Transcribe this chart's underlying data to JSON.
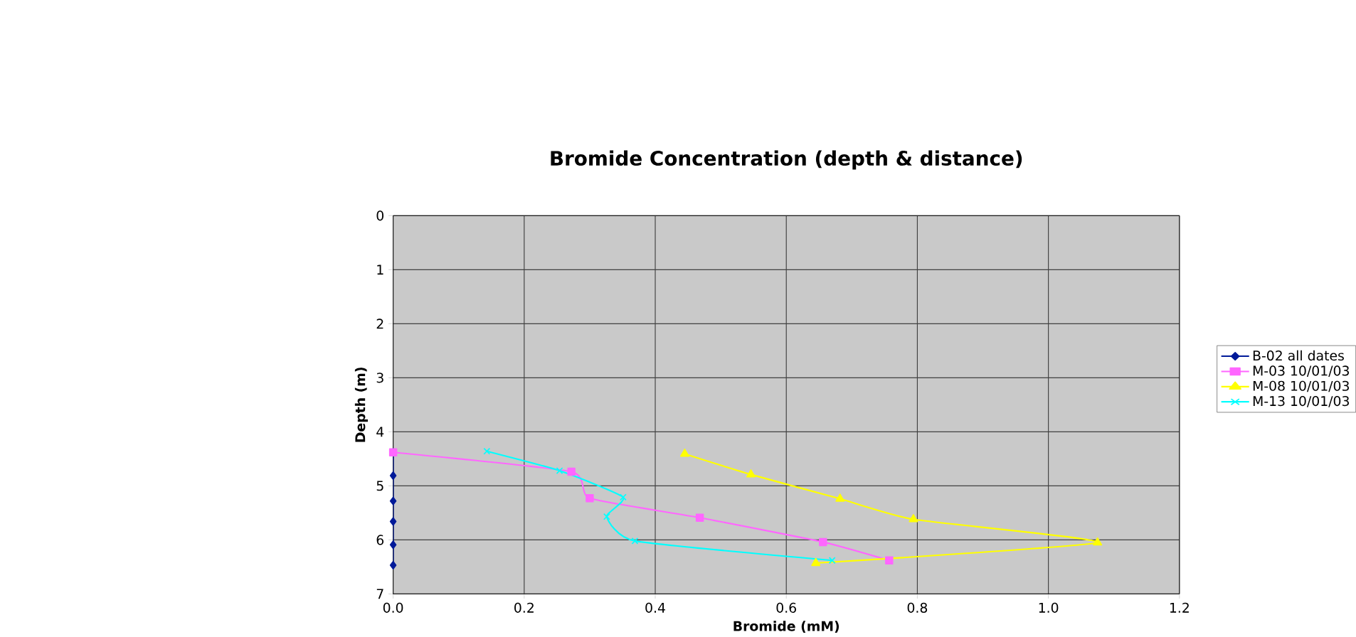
{
  "chart_data": {
    "type": "line",
    "title": "Bromide Concentration (depth & distance)",
    "xlabel": "Bromide (mM)",
    "ylabel": "Depth (m)",
    "xlim": [
      0,
      1.2
    ],
    "xticks": [
      {
        "value": 0,
        "label": "0.0"
      },
      {
        "value": 0.2,
        "label": "0.2"
      },
      {
        "value": 0.4,
        "label": "0.4"
      },
      {
        "value": 0.6,
        "label": "0.6"
      },
      {
        "value": 0.8,
        "label": "0.8"
      },
      {
        "value": 1.0,
        "label": "1.0"
      },
      {
        "value": 1.2,
        "label": "1.2"
      }
    ],
    "ylim": [
      7,
      0
    ],
    "yticks": [
      0,
      1,
      2,
      3,
      4,
      5,
      6,
      7
    ],
    "grid": true,
    "legend": "right",
    "series": [
      {
        "name": "B-02 all dates",
        "color": "#001a99",
        "marker": "diamond",
        "x": [
          0,
          0,
          0,
          0,
          0,
          0
        ],
        "values": [
          4.38,
          4.81,
          5.28,
          5.66,
          6.09,
          6.47
        ]
      },
      {
        "name": "M-03 10/01/03",
        "color": "#ff66ff",
        "marker": "square",
        "x": [
          0,
          0.272,
          0.3,
          0.468,
          0.656,
          0.757
        ],
        "values": [
          4.38,
          4.74,
          5.23,
          5.59,
          6.04,
          6.38
        ]
      },
      {
        "name": "M-08 10/01/03",
        "color": "#ffff00",
        "marker": "triangle",
        "x": [
          0.445,
          0.546,
          0.682,
          0.794,
          1.075,
          0.645
        ],
        "values": [
          4.41,
          4.79,
          5.24,
          5.62,
          6.05,
          6.43
        ]
      },
      {
        "name": "M-13 10/01/03",
        "color": "#00ffff",
        "marker": "cross",
        "x": [
          0.143,
          0.254,
          0.351,
          0.326,
          0.369,
          0.67
        ],
        "values": [
          4.36,
          4.72,
          5.21,
          5.57,
          6.02,
          6.38
        ]
      }
    ]
  }
}
